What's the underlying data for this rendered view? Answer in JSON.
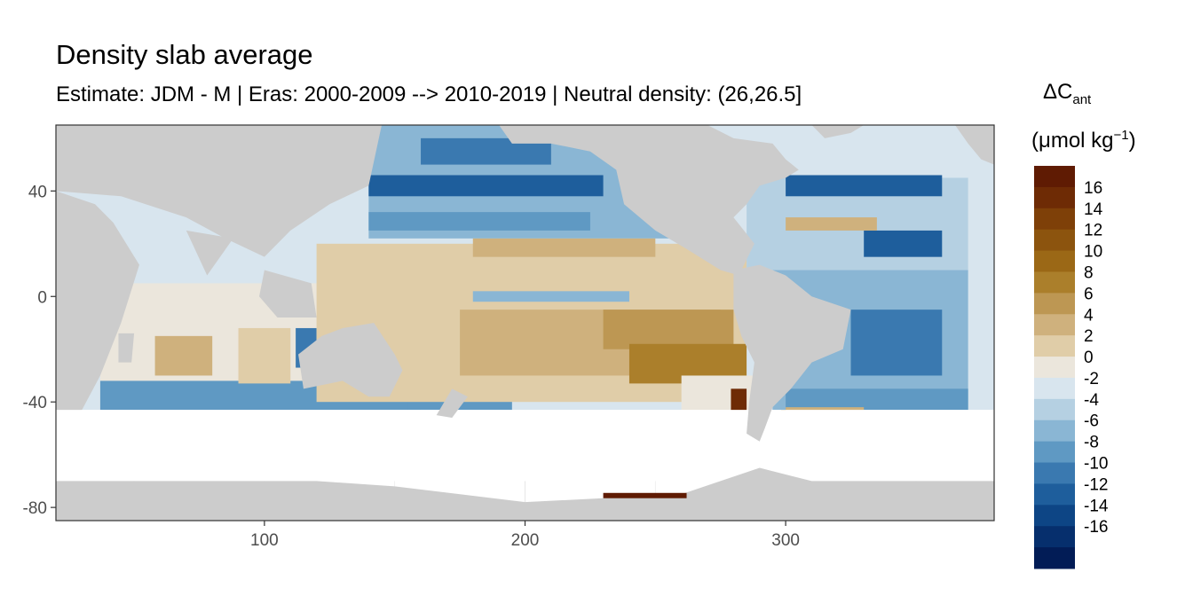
{
  "chart_data": {
    "type": "heatmap",
    "title": "Density slab average",
    "subtitle": "Estimate: JDM - M | Eras: 2000-2009 --> 2010-2019 | Neutral density: (26,26.5]",
    "xlabel": "",
    "ylabel": "",
    "xlim": [
      20,
      380
    ],
    "ylim": [
      -85,
      65
    ],
    "x_ticks": [
      100,
      200,
      300
    ],
    "y_ticks": [
      40,
      0,
      -40,
      -80
    ],
    "grid": true,
    "legend": {
      "title_main": "ΔC",
      "title_sub": "ant",
      "unit_prefix": "(μmol kg",
      "unit_sup": "−1",
      "unit_suffix": ")",
      "placement": "right",
      "labels": [
        "16",
        "14",
        "12",
        "10",
        "8",
        "6",
        "4",
        "2",
        "0",
        "-2",
        "-4",
        "-6",
        "-8",
        "-10",
        "-12",
        "-14",
        "-16"
      ],
      "colors": [
        "#5f1b03",
        "#6e2b05",
        "#7e4008",
        "#8c540e",
        "#9b6816",
        "#ab7f2b",
        "#bd9753",
        "#cfb17d",
        "#e0cda8",
        "#ebe6dc",
        "#d8e5ee",
        "#b5d0e2",
        "#8ab6d4",
        "#5f99c3",
        "#3a79b0",
        "#1e5e9c",
        "#0d4585",
        "#062f6d",
        "#021c56"
      ]
    },
    "land_color": "#cccccc",
    "colors_note": "diverging brown (positive) to blue (negative) palette"
  }
}
